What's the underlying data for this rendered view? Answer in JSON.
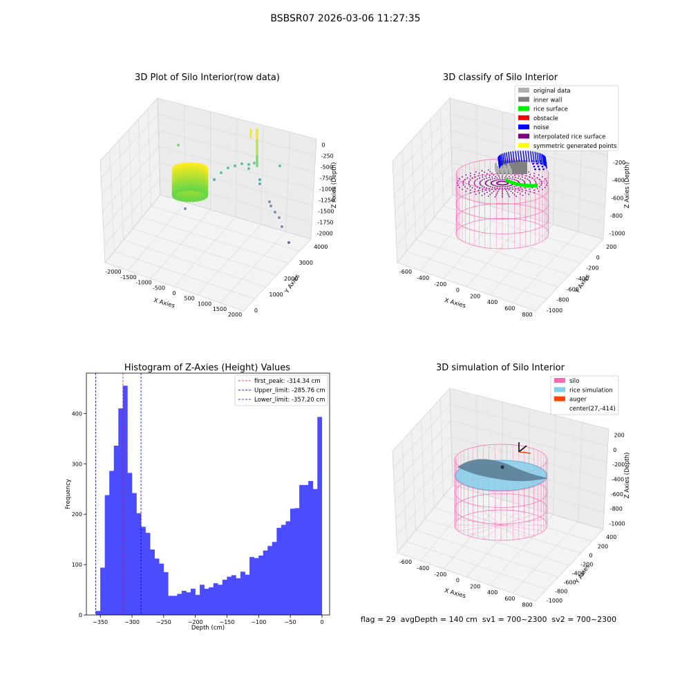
{
  "figure": {
    "suptitle": "BSBSR07 2026-03-06 11:27:35",
    "status_line": "flag = 29  avgDepth = 140 cm  sv1 = 700~2300  sv2 = 700~2300"
  },
  "colors": {
    "rice_surface": "#00ee00",
    "noise": "#0000ff",
    "inner_wall": "#808080",
    "original_data": "#b0b0b0",
    "obstacle": "#ff0000",
    "interpolated": "#800080",
    "symmetric": "#ffff00",
    "silo": "#ff69b4",
    "rice_sim": "#87ceeb",
    "auger": "#ff4500",
    "hist_bar": "#4b4bff"
  },
  "chart_data": [
    {
      "type": "scatter",
      "subtype": "3d",
      "title": "3D Plot of Silo Interior(row data)",
      "xlabel": "X Axies",
      "ylabel": "Y Axies",
      "zlabel": "Z Axies (Depth)",
      "xticks": [
        "-2000",
        "-1500",
        "-1000",
        "-500",
        "0",
        "500",
        "1000",
        "1500",
        "2000"
      ],
      "yticks": [
        "0",
        "1000",
        "2000",
        "3000",
        "4000"
      ],
      "zticks": [
        "0",
        "-250",
        "-500",
        "-750",
        "-1000",
        "-1250",
        "-1500",
        "-1750",
        "-2000"
      ],
      "grid": true
    },
    {
      "type": "scatter",
      "subtype": "3d",
      "title": "3D classify of Silo Interior",
      "xlabel": "X Axies",
      "ylabel": "Y Axies",
      "zlabel": "Z Axies (Depth)",
      "xticks": [
        "-600",
        "-400",
        "-200",
        "0",
        "200",
        "400",
        "600",
        "800"
      ],
      "yticks": [
        "-1000",
        "-800",
        "-600",
        "-400",
        "-200",
        "0",
        "200"
      ],
      "zticks": [
        "0",
        "-200",
        "-400",
        "-600",
        "-800",
        "-1000"
      ],
      "legend": [
        "original data",
        "inner wall",
        "rice surface",
        "obstacle",
        "noise",
        "interpolated rice surface",
        "symmetric generated points"
      ],
      "legend_position": "top-right",
      "grid": true
    },
    {
      "type": "bar",
      "subtype": "histogram",
      "title": "Histogram of Z-Axies (Height) Values",
      "xlabel": "Depth (cm)",
      "ylabel": "Frequency",
      "xlim": [
        -372,
        12
      ],
      "ylim": [
        0,
        480
      ],
      "xticks": [
        "−350",
        "−300",
        "−250",
        "−200",
        "−150",
        "−100",
        "−50",
        "0"
      ],
      "yticks": [
        "0",
        "100",
        "200",
        "300",
        "400"
      ],
      "bin_start": -357.2,
      "bin_width": 7.14,
      "values": [
        8,
        94,
        238,
        286,
        336,
        410,
        455,
        282,
        242,
        202,
        175,
        163,
        130,
        112,
        102,
        85,
        38,
        38,
        42,
        48,
        45,
        52,
        40,
        60,
        52,
        55,
        63,
        60,
        70,
        76,
        79,
        73,
        86,
        80,
        115,
        113,
        118,
        128,
        137,
        145,
        173,
        179,
        186,
        211,
        212,
        258,
        258,
        266,
        250,
        393
      ],
      "lines": [
        {
          "label": "first_peak: -314.34 cm",
          "x": -314.34,
          "color": "#ff0000"
        },
        {
          "label": "Upper_limit: -285.76 cm",
          "x": -285.76,
          "color": "#0000cd"
        },
        {
          "label": "Lower_limit: -357.20 cm",
          "x": -357.2,
          "color": "#0000cd"
        }
      ],
      "legend_position": "top-right"
    },
    {
      "type": "scatter",
      "subtype": "3d",
      "title": "3D simulation of Silo Interior",
      "xlabel": "X Axies",
      "ylabel": "Y Axies",
      "zlabel": "Z Axies (Depth)",
      "xticks": [
        "-600",
        "-400",
        "-200",
        "0",
        "200",
        "400",
        "600",
        "800"
      ],
      "yticks": [
        "-1000",
        "-800",
        "-600",
        "-400",
        "-200",
        "0",
        "200",
        "400"
      ],
      "zticks": [
        "200",
        "0",
        "-200",
        "-400",
        "-600",
        "-800",
        "-1000"
      ],
      "legend": [
        "silo",
        "rice simulation",
        "auger",
        "center(27,-414)"
      ],
      "legend_position": "top-right",
      "grid": true
    }
  ]
}
